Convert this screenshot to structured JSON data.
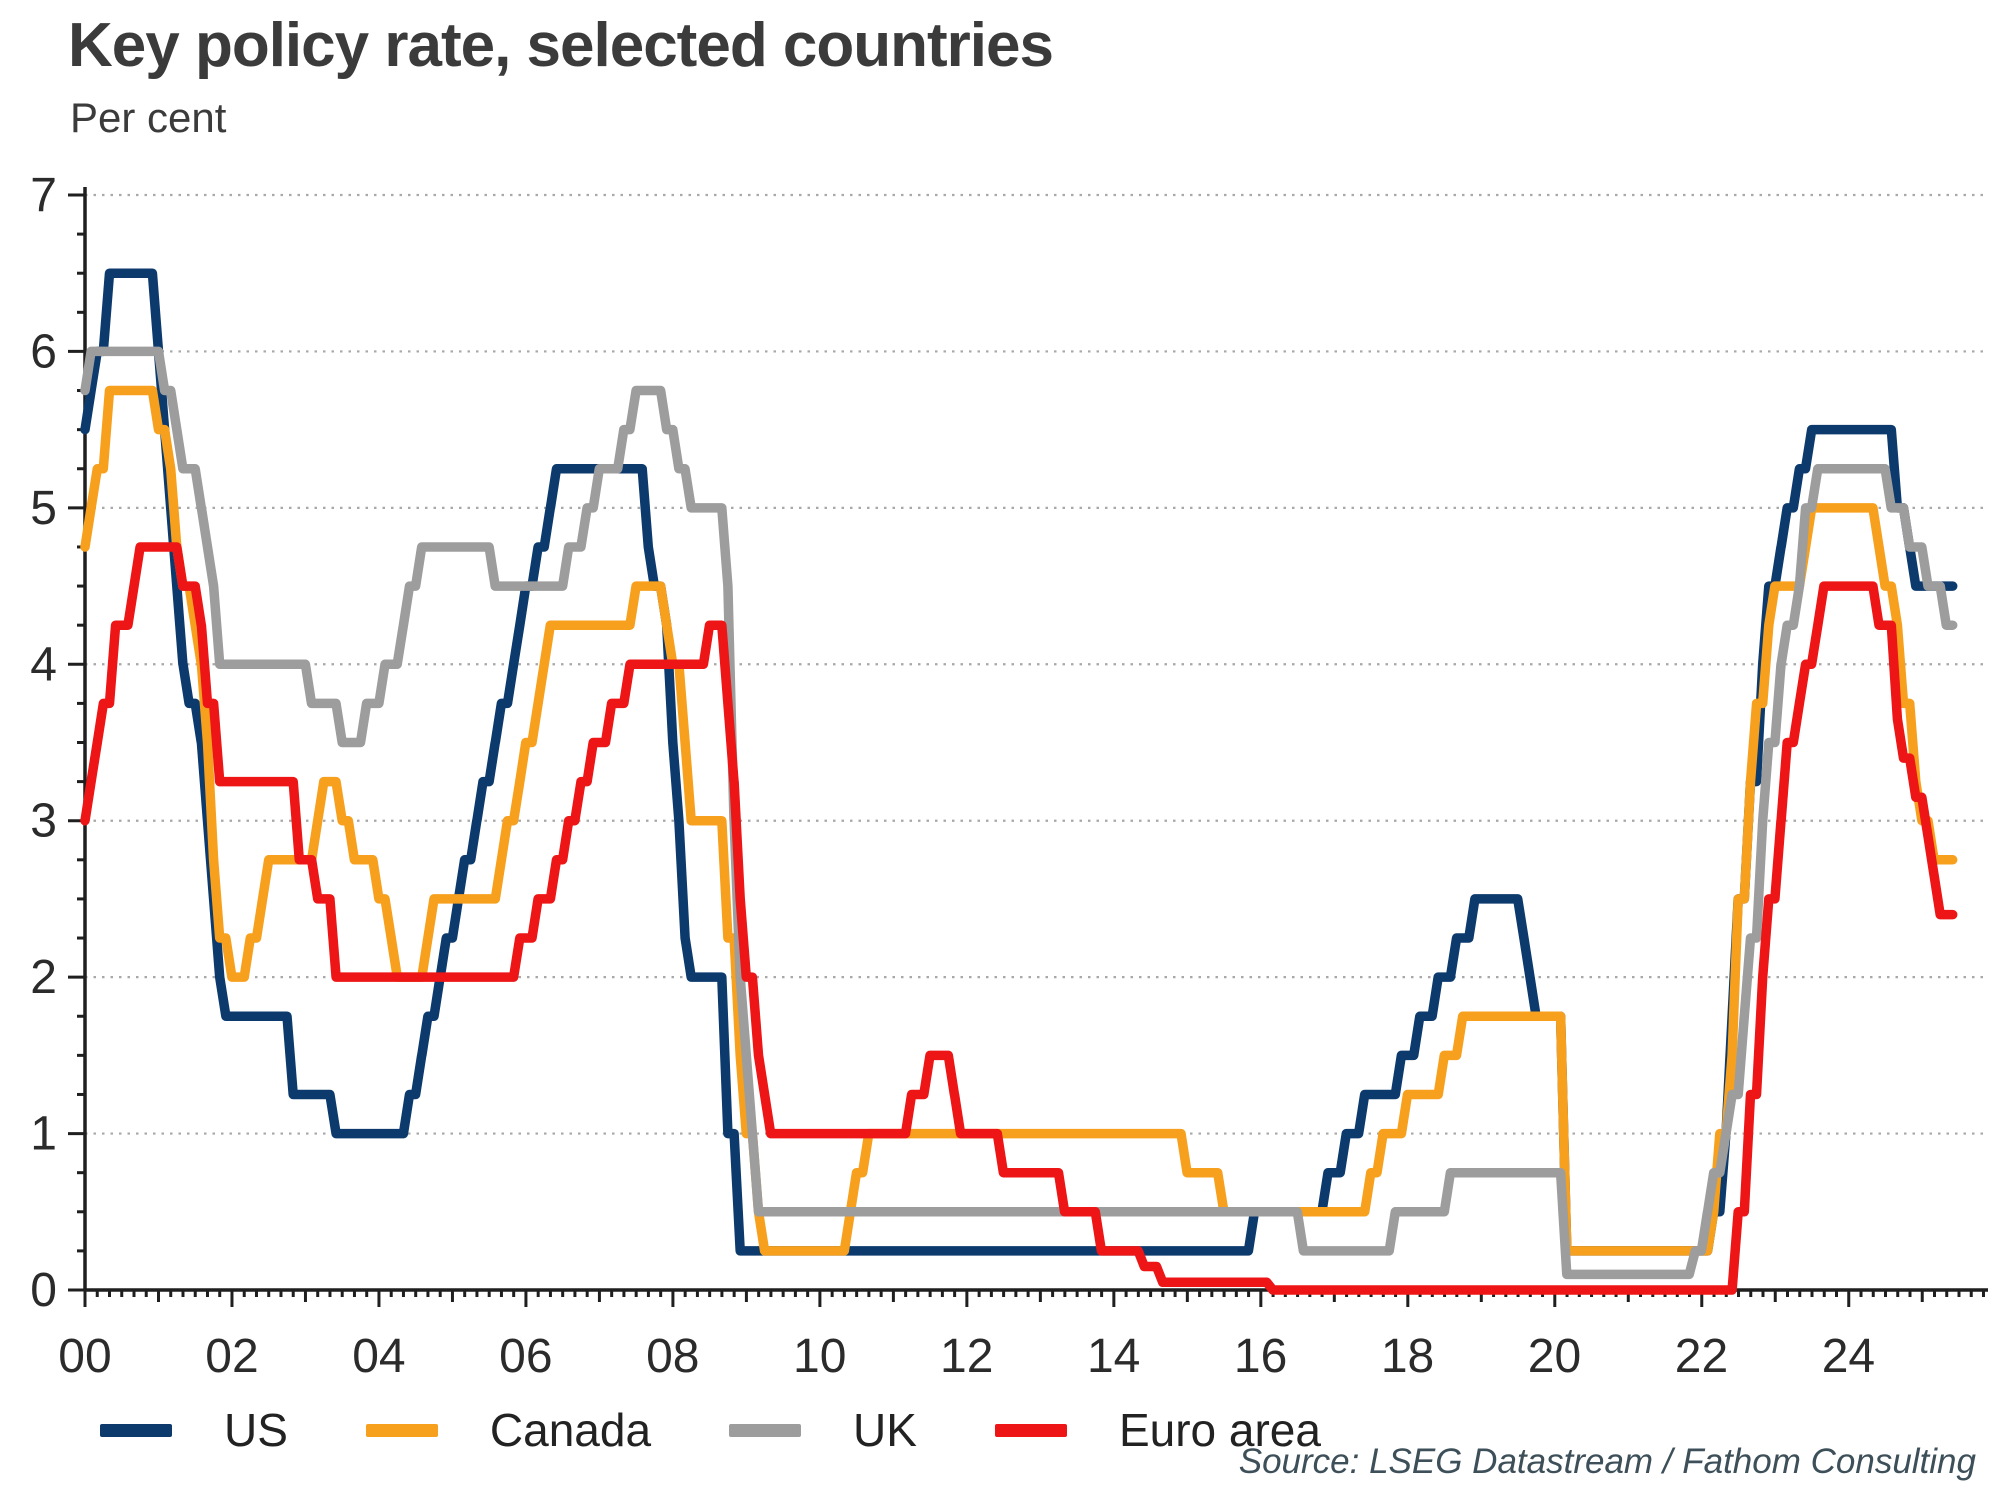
{
  "header": {
    "title": "Key policy rate, selected countries",
    "subtitle": "Per cent"
  },
  "source": "Source: LSEG Datastream / Fathom Consulting",
  "colors": {
    "axis": "#1f1f1f",
    "grid": "#a8a8a8",
    "tick_label": "#2b2b2b",
    "title_text": "#3b3b3b",
    "source_text": "#3d4f58",
    "background": "#ffffff"
  },
  "chart_data": {
    "type": "line",
    "title": "Key policy rate, selected countries",
    "ylabel": "Per cent",
    "xlabel": "",
    "ylim": [
      0,
      7
    ],
    "xlim": [
      2000,
      2025.9
    ],
    "grid": "horizontal-dotted-at-integers",
    "legend_position": "bottom-left",
    "y_ticks": [
      0,
      1,
      2,
      3,
      4,
      5,
      6,
      7
    ],
    "y_minor_step": 0.25,
    "x_minor_step_years": 0.1667,
    "x_ticks": [
      {
        "value": 2000,
        "label": "00"
      },
      {
        "value": 2002,
        "label": "02"
      },
      {
        "value": 2004,
        "label": "04"
      },
      {
        "value": 2006,
        "label": "06"
      },
      {
        "value": 2008,
        "label": "08"
      },
      {
        "value": 2010,
        "label": "10"
      },
      {
        "value": 2012,
        "label": "12"
      },
      {
        "value": 2014,
        "label": "14"
      },
      {
        "value": 2016,
        "label": "16"
      },
      {
        "value": 2018,
        "label": "18"
      },
      {
        "value": 2020,
        "label": "20"
      },
      {
        "value": 2022,
        "label": "22"
      },
      {
        "value": 2024,
        "label": "24"
      }
    ],
    "x_end_of_data": 2025.42,
    "series": [
      {
        "name": "US",
        "color": "#0c3a6d",
        "steps": [
          [
            2000.0,
            5.5
          ],
          [
            2000.083,
            5.75
          ],
          [
            2000.167,
            6.0
          ],
          [
            2000.333,
            6.5
          ],
          [
            2001.0,
            6.0
          ],
          [
            2001.083,
            5.5
          ],
          [
            2001.167,
            5.0
          ],
          [
            2001.25,
            4.5
          ],
          [
            2001.333,
            4.0
          ],
          [
            2001.417,
            3.75
          ],
          [
            2001.583,
            3.5
          ],
          [
            2001.667,
            3.0
          ],
          [
            2001.75,
            2.5
          ],
          [
            2001.833,
            2.0
          ],
          [
            2001.917,
            1.75
          ],
          [
            2002.833,
            1.25
          ],
          [
            2003.417,
            1.0
          ],
          [
            2004.417,
            1.25
          ],
          [
            2004.583,
            1.5
          ],
          [
            2004.667,
            1.75
          ],
          [
            2004.833,
            2.0
          ],
          [
            2004.917,
            2.25
          ],
          [
            2005.083,
            2.5
          ],
          [
            2005.167,
            2.75
          ],
          [
            2005.333,
            3.0
          ],
          [
            2005.417,
            3.25
          ],
          [
            2005.583,
            3.5
          ],
          [
            2005.667,
            3.75
          ],
          [
            2005.833,
            4.0
          ],
          [
            2005.917,
            4.25
          ],
          [
            2006.0,
            4.5
          ],
          [
            2006.167,
            4.75
          ],
          [
            2006.333,
            5.0
          ],
          [
            2006.417,
            5.25
          ],
          [
            2007.667,
            4.75
          ],
          [
            2007.75,
            4.5
          ],
          [
            2007.917,
            4.25
          ],
          [
            2008.0,
            3.5
          ],
          [
            2008.083,
            3.0
          ],
          [
            2008.167,
            2.25
          ],
          [
            2008.25,
            2.0
          ],
          [
            2008.75,
            1.0
          ],
          [
            2008.917,
            0.25
          ],
          [
            2015.917,
            0.5
          ],
          [
            2016.917,
            0.75
          ],
          [
            2017.167,
            1.0
          ],
          [
            2017.417,
            1.25
          ],
          [
            2017.917,
            1.5
          ],
          [
            2018.167,
            1.75
          ],
          [
            2018.417,
            2.0
          ],
          [
            2018.667,
            2.25
          ],
          [
            2018.917,
            2.5
          ],
          [
            2019.583,
            2.25
          ],
          [
            2019.667,
            2.0
          ],
          [
            2019.75,
            1.75
          ],
          [
            2020.167,
            0.25
          ],
          [
            2022.167,
            0.5
          ],
          [
            2022.333,
            1.0
          ],
          [
            2022.417,
            1.75
          ],
          [
            2022.5,
            2.5
          ],
          [
            2022.667,
            3.25
          ],
          [
            2022.833,
            4.0
          ],
          [
            2022.917,
            4.5
          ],
          [
            2023.083,
            4.75
          ],
          [
            2023.167,
            5.0
          ],
          [
            2023.333,
            5.25
          ],
          [
            2023.5,
            5.5
          ],
          [
            2024.667,
            5.0
          ],
          [
            2024.833,
            4.75
          ],
          [
            2024.917,
            4.5
          ]
        ]
      },
      {
        "name": "Canada",
        "color": "#f7a01e",
        "steps": [
          [
            2000.0,
            4.75
          ],
          [
            2000.083,
            5.0
          ],
          [
            2000.167,
            5.25
          ],
          [
            2000.333,
            5.75
          ],
          [
            2001.0,
            5.5
          ],
          [
            2001.167,
            5.25
          ],
          [
            2001.25,
            4.75
          ],
          [
            2001.333,
            4.5
          ],
          [
            2001.5,
            4.25
          ],
          [
            2001.583,
            4.0
          ],
          [
            2001.667,
            3.5
          ],
          [
            2001.75,
            2.75
          ],
          [
            2001.833,
            2.25
          ],
          [
            2002.0,
            2.0
          ],
          [
            2002.25,
            2.25
          ],
          [
            2002.417,
            2.5
          ],
          [
            2002.5,
            2.75
          ],
          [
            2003.167,
            3.0
          ],
          [
            2003.25,
            3.25
          ],
          [
            2003.5,
            3.0
          ],
          [
            2003.667,
            2.75
          ],
          [
            2004.0,
            2.5
          ],
          [
            2004.167,
            2.25
          ],
          [
            2004.25,
            2.0
          ],
          [
            2004.667,
            2.25
          ],
          [
            2004.75,
            2.5
          ],
          [
            2005.667,
            2.75
          ],
          [
            2005.75,
            3.0
          ],
          [
            2005.917,
            3.25
          ],
          [
            2006.0,
            3.5
          ],
          [
            2006.167,
            3.75
          ],
          [
            2006.25,
            4.0
          ],
          [
            2006.333,
            4.25
          ],
          [
            2007.5,
            4.5
          ],
          [
            2007.917,
            4.25
          ],
          [
            2008.0,
            4.0
          ],
          [
            2008.167,
            3.5
          ],
          [
            2008.25,
            3.0
          ],
          [
            2008.75,
            2.25
          ],
          [
            2008.917,
            1.5
          ],
          [
            2009.0,
            1.0
          ],
          [
            2009.167,
            0.5
          ],
          [
            2009.25,
            0.25
          ],
          [
            2010.417,
            0.5
          ],
          [
            2010.5,
            0.75
          ],
          [
            2010.667,
            1.0
          ],
          [
            2015.0,
            0.75
          ],
          [
            2015.5,
            0.5
          ],
          [
            2017.5,
            0.75
          ],
          [
            2017.667,
            1.0
          ],
          [
            2018.0,
            1.25
          ],
          [
            2018.5,
            1.5
          ],
          [
            2018.75,
            1.75
          ],
          [
            2020.167,
            0.25
          ],
          [
            2022.167,
            0.5
          ],
          [
            2022.25,
            1.0
          ],
          [
            2022.417,
            1.5
          ],
          [
            2022.5,
            2.5
          ],
          [
            2022.667,
            3.25
          ],
          [
            2022.75,
            3.75
          ],
          [
            2022.917,
            4.25
          ],
          [
            2023.0,
            4.5
          ],
          [
            2023.417,
            4.75
          ],
          [
            2023.5,
            5.0
          ],
          [
            2024.417,
            4.75
          ],
          [
            2024.5,
            4.5
          ],
          [
            2024.667,
            4.25
          ],
          [
            2024.75,
            3.75
          ],
          [
            2024.917,
            3.25
          ],
          [
            2025.0,
            3.0
          ],
          [
            2025.167,
            2.75
          ]
        ]
      },
      {
        "name": "UK",
        "color": "#9d9d9d",
        "steps": [
          [
            2000.0,
            5.75
          ],
          [
            2000.083,
            6.0
          ],
          [
            2001.083,
            5.75
          ],
          [
            2001.25,
            5.5
          ],
          [
            2001.333,
            5.25
          ],
          [
            2001.583,
            5.0
          ],
          [
            2001.667,
            4.75
          ],
          [
            2001.75,
            4.5
          ],
          [
            2001.833,
            4.0
          ],
          [
            2003.083,
            3.75
          ],
          [
            2003.5,
            3.5
          ],
          [
            2003.833,
            3.75
          ],
          [
            2004.083,
            4.0
          ],
          [
            2004.333,
            4.25
          ],
          [
            2004.417,
            4.5
          ],
          [
            2004.583,
            4.75
          ],
          [
            2005.583,
            4.5
          ],
          [
            2006.583,
            4.75
          ],
          [
            2006.833,
            5.0
          ],
          [
            2007.0,
            5.25
          ],
          [
            2007.333,
            5.5
          ],
          [
            2007.5,
            5.75
          ],
          [
            2007.917,
            5.5
          ],
          [
            2008.083,
            5.25
          ],
          [
            2008.25,
            5.0
          ],
          [
            2008.75,
            4.5
          ],
          [
            2008.833,
            3.0
          ],
          [
            2008.917,
            2.0
          ],
          [
            2009.0,
            1.5
          ],
          [
            2009.083,
            1.0
          ],
          [
            2009.167,
            0.5
          ],
          [
            2016.583,
            0.25
          ],
          [
            2017.833,
            0.5
          ],
          [
            2018.583,
            0.75
          ],
          [
            2020.167,
            0.1
          ],
          [
            2021.917,
            0.25
          ],
          [
            2022.083,
            0.5
          ],
          [
            2022.167,
            0.75
          ],
          [
            2022.333,
            1.0
          ],
          [
            2022.417,
            1.25
          ],
          [
            2022.583,
            1.75
          ],
          [
            2022.667,
            2.25
          ],
          [
            2022.833,
            3.0
          ],
          [
            2022.917,
            3.5
          ],
          [
            2023.083,
            4.0
          ],
          [
            2023.167,
            4.25
          ],
          [
            2023.333,
            4.5
          ],
          [
            2023.417,
            5.0
          ],
          [
            2023.583,
            5.25
          ],
          [
            2024.583,
            5.0
          ],
          [
            2024.833,
            4.75
          ],
          [
            2025.083,
            4.5
          ],
          [
            2025.333,
            4.25
          ]
        ]
      },
      {
        "name": "Euro area",
        "color": "#ed1515",
        "steps": [
          [
            2000.0,
            3.0
          ],
          [
            2000.083,
            3.25
          ],
          [
            2000.167,
            3.5
          ],
          [
            2000.25,
            3.75
          ],
          [
            2000.417,
            4.25
          ],
          [
            2000.667,
            4.5
          ],
          [
            2000.75,
            4.75
          ],
          [
            2001.333,
            4.5
          ],
          [
            2001.583,
            4.25
          ],
          [
            2001.667,
            3.75
          ],
          [
            2001.833,
            3.25
          ],
          [
            2002.917,
            2.75
          ],
          [
            2003.167,
            2.5
          ],
          [
            2003.417,
            2.0
          ],
          [
            2005.917,
            2.25
          ],
          [
            2006.167,
            2.5
          ],
          [
            2006.417,
            2.75
          ],
          [
            2006.583,
            3.0
          ],
          [
            2006.75,
            3.25
          ],
          [
            2006.917,
            3.5
          ],
          [
            2007.167,
            3.75
          ],
          [
            2007.417,
            4.0
          ],
          [
            2008.5,
            4.25
          ],
          [
            2008.75,
            3.75
          ],
          [
            2008.833,
            3.25
          ],
          [
            2008.917,
            2.5
          ],
          [
            2009.0,
            2.0
          ],
          [
            2009.167,
            1.5
          ],
          [
            2009.25,
            1.25
          ],
          [
            2009.333,
            1.0
          ],
          [
            2011.25,
            1.25
          ],
          [
            2011.5,
            1.5
          ],
          [
            2011.833,
            1.25
          ],
          [
            2011.917,
            1.0
          ],
          [
            2012.5,
            0.75
          ],
          [
            2013.333,
            0.5
          ],
          [
            2013.833,
            0.25
          ],
          [
            2014.417,
            0.15
          ],
          [
            2014.667,
            0.05
          ],
          [
            2016.167,
            0.0
          ],
          [
            2022.5,
            0.5
          ],
          [
            2022.667,
            1.25
          ],
          [
            2022.833,
            2.0
          ],
          [
            2022.917,
            2.5
          ],
          [
            2023.083,
            3.0
          ],
          [
            2023.167,
            3.5
          ],
          [
            2023.333,
            3.75
          ],
          [
            2023.417,
            4.0
          ],
          [
            2023.583,
            4.25
          ],
          [
            2023.667,
            4.5
          ],
          [
            2024.417,
            4.25
          ],
          [
            2024.667,
            3.65
          ],
          [
            2024.75,
            3.4
          ],
          [
            2024.917,
            3.15
          ],
          [
            2025.083,
            2.9
          ],
          [
            2025.167,
            2.65
          ],
          [
            2025.25,
            2.4
          ]
        ]
      }
    ]
  }
}
